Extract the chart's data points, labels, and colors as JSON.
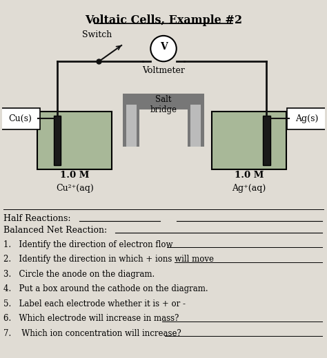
{
  "title": "Voltaic Cells, Example #2",
  "paper_color": "#e0dcd4",
  "title_fontsize": 11.5,
  "questions": [
    "1.   Identify the direction of electron flow",
    "2.   Identify the direction in which + ions will move",
    "3.   Circle the anode on the diagram.",
    "4.   Put a box around the cathode on the diagram.",
    "5.   Label each electrode whether it is + or -",
    "6.   Which electrode will increase in mass?",
    "7.    Which ion concentration will increase?"
  ],
  "half_reactions_label": "Half Reactions:",
  "balanced_label": "Balanced Net Reaction:",
  "switch_label": "Switch",
  "voltmeter_label": "Voltmeter",
  "salt_bridge_label": "Salt\nbridge",
  "cu_label": "Cu(s)",
  "ag_label": "Ag(s)",
  "left_conc": "1.0 M",
  "left_ion": "Cu²⁺(aq)",
  "right_conc": "1.0 M",
  "right_ion": "Ag⁺(aq)",
  "wire_color": "#111111",
  "electrode_color": "#1a1a1a",
  "beaker_liquid_color": "#a8b898",
  "salt_bridge_color": "#777777",
  "salt_bridge_inner_color": "#bbbbbb"
}
